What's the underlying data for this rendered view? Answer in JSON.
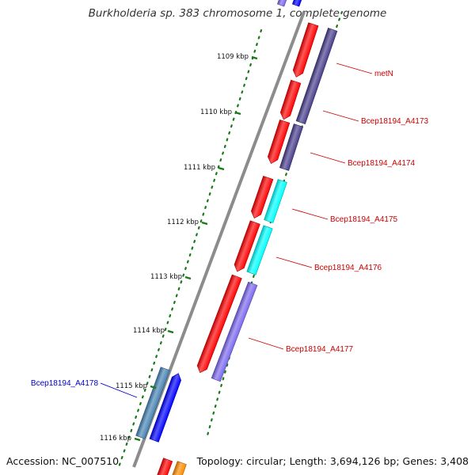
{
  "title": "Burkholderia sp. 383 chromosome 1, complete genome",
  "footer": {
    "accession": "Accession: NC_007510",
    "summary": "Topology: circular; Length: 3,694,126 bp; Genes: 3,408"
  },
  "colors": {
    "backbone": "#8c8c8c",
    "ticks": "#1a7a1a",
    "forward_cds": "#ff0000",
    "label_red": "#cc0000",
    "label_blue": "#0000cc",
    "dark_slate": "#483d8b",
    "cyan": "#00ffff",
    "medium_slate": "#7b68ee",
    "blue": "#0000ff",
    "steel_blue": "#4682b4",
    "orange": "#ff8c00"
  },
  "ticks": [
    {
      "label": "1109 kbp"
    },
    {
      "label": "1110 kbp"
    },
    {
      "label": "1111 kbp"
    },
    {
      "label": "1112 kbp"
    },
    {
      "label": "1113 kbp"
    },
    {
      "label": "1114 kbp"
    },
    {
      "label": "1115 kbp"
    },
    {
      "label": "1116 kbp"
    }
  ],
  "genes": [
    {
      "label": "metN",
      "color": "dark_slate"
    },
    {
      "label": "Bcep18194_A4173",
      "color": "dark_slate"
    },
    {
      "label": "Bcep18194_A4174",
      "color": "dark_slate"
    },
    {
      "label": "Bcep18194_A4175",
      "color": "cyan"
    },
    {
      "label": "Bcep18194_A4176",
      "color": "cyan"
    },
    {
      "label": "Bcep18194_A4177",
      "color": "medium_slate"
    },
    {
      "label": "Bcep18194_A4178",
      "color": "steel_blue"
    }
  ]
}
